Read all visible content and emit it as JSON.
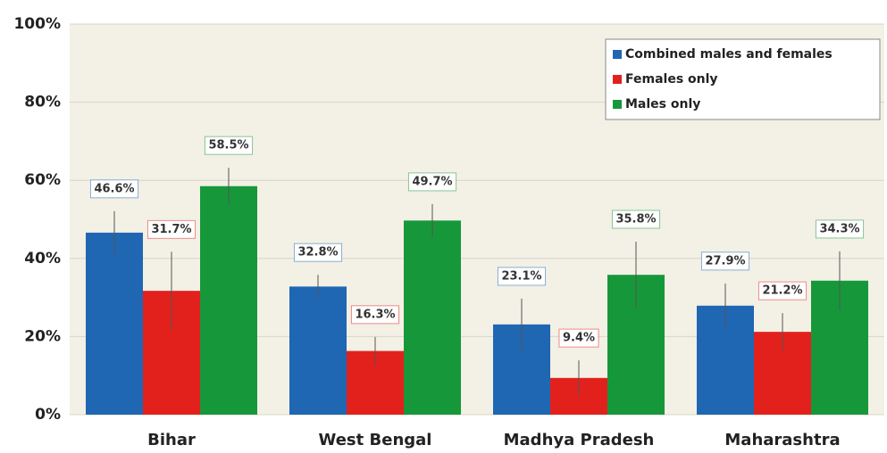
{
  "chart_data": {
    "type": "bar",
    "categories": [
      "Bihar",
      "West Bengal",
      "Madhya Pradesh",
      "Maharashtra"
    ],
    "series": [
      {
        "name": "Combined males and females",
        "color": "#1f66b3",
        "values": [
          46.6,
          32.8,
          23.1,
          27.9
        ],
        "errors": [
          5.5,
          3,
          6.6,
          5.7
        ],
        "value_labels": [
          "46.6%",
          "32.8%",
          "23.1%",
          "27.9%"
        ]
      },
      {
        "name": "Females only",
        "color": "#e2211c",
        "values": [
          31.7,
          16.3,
          9.4,
          21.2
        ],
        "errors": [
          10,
          3.6,
          4.5,
          4.8
        ],
        "value_labels": [
          "31.7%",
          "16.3%",
          "9.4%",
          "21.2%"
        ]
      },
      {
        "name": "Males only",
        "color": "#16983a",
        "values": [
          58.5,
          49.7,
          35.8,
          34.3
        ],
        "errors": [
          4.7,
          4.2,
          8.5,
          7.5
        ],
        "value_labels": [
          "58.5%",
          "49.7%",
          "35.8%",
          "34.3%"
        ]
      }
    ],
    "ylim": [
      0,
      100
    ],
    "yticks": [
      {
        "value": 0,
        "label": "0%"
      },
      {
        "value": 20,
        "label": "20%"
      },
      {
        "value": 40,
        "label": "40%"
      },
      {
        "value": 60,
        "label": "60%"
      },
      {
        "value": 80,
        "label": "80%"
      },
      {
        "value": 100,
        "label": "100%"
      }
    ],
    "grid": true,
    "legend": "upper right"
  }
}
